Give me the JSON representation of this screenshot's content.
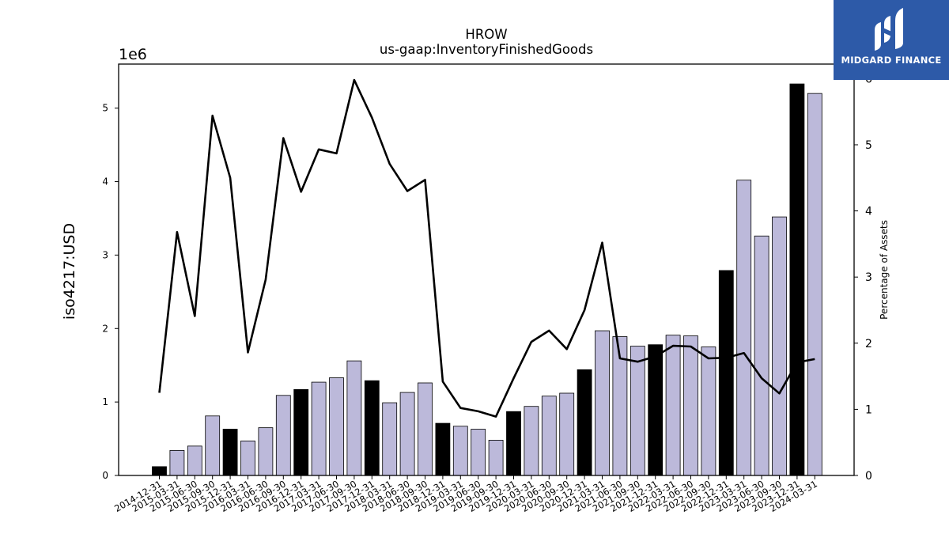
{
  "chart_data": {
    "type": "bar",
    "title": "HROW",
    "subtitle": "us-gaap:InventoryFinishedGoods",
    "ylabel": "iso4217:USD",
    "y2label": "Percentage of Assets",
    "y_offset_label": "1e6",
    "ylim": [
      0,
      5600000
    ],
    "y2lim": [
      0,
      6.22
    ],
    "yticks": [
      0,
      1,
      2,
      3,
      4,
      5
    ],
    "y2ticks": [
      0,
      1,
      2,
      3,
      4,
      5,
      6
    ],
    "categories": [
      "2014-12-31",
      "2015-03-31",
      "2015-06-30",
      "2015-09-30",
      "2015-12-31",
      "2016-03-31",
      "2016-06-30",
      "2016-09-30",
      "2016-12-31",
      "2017-03-31",
      "2017-06-30",
      "2017-09-30",
      "2017-12-31",
      "2018-03-31",
      "2018-06-30",
      "2018-09-30",
      "2018-12-31",
      "2019-03-31",
      "2019-06-30",
      "2019-09-30",
      "2019-12-31",
      "2020-03-31",
      "2020-06-30",
      "2020-09-30",
      "2020-12-31",
      "2021-03-31",
      "2021-06-30",
      "2021-09-30",
      "2021-12-31",
      "2022-03-31",
      "2022-06-30",
      "2022-09-30",
      "2022-12-31",
      "2023-03-31",
      "2023-06-30",
      "2023-09-30",
      "2023-12-31",
      "2024-03-31"
    ],
    "series": [
      {
        "kind": "bar",
        "values": [
          120000,
          340000,
          400000,
          810000,
          630000,
          470000,
          650000,
          1090000,
          1170000,
          1270000,
          1330000,
          1560000,
          1290000,
          990000,
          1130000,
          1260000,
          710000,
          670000,
          630000,
          480000,
          870000,
          940000,
          1080000,
          1120000,
          1440000,
          1970000,
          1890000,
          1760000,
          1780000,
          1910000,
          1900000,
          1750000,
          2790000,
          4020000,
          3260000,
          3520000,
          5330000,
          5200000
        ],
        "highlight": [
          true,
          false,
          false,
          false,
          true,
          false,
          false,
          false,
          true,
          false,
          false,
          false,
          true,
          false,
          false,
          false,
          true,
          false,
          false,
          false,
          true,
          false,
          false,
          false,
          true,
          false,
          false,
          false,
          true,
          false,
          false,
          false,
          true,
          false,
          false,
          false,
          true,
          false
        ]
      },
      {
        "kind": "line",
        "axis": "right",
        "values": [
          1.25,
          3.68,
          2.41,
          5.44,
          4.5,
          1.86,
          2.96,
          5.1,
          4.29,
          4.93,
          4.87,
          5.98,
          5.41,
          4.71,
          4.3,
          4.47,
          1.42,
          1.02,
          0.97,
          0.89,
          1.47,
          2.02,
          2.19,
          1.91,
          2.5,
          3.52,
          1.77,
          1.72,
          1.8,
          1.96,
          1.95,
          1.77,
          1.78,
          1.85,
          1.47,
          1.24,
          1.71,
          1.76
        ]
      }
    ],
    "colors": {
      "bar": "#bcb9da",
      "bar_highlight": "#000000",
      "line": "#000000",
      "edge": "#000000"
    },
    "grid": false,
    "legend": "none"
  },
  "logo": {
    "text": "MIDGARD FINANCE"
  }
}
